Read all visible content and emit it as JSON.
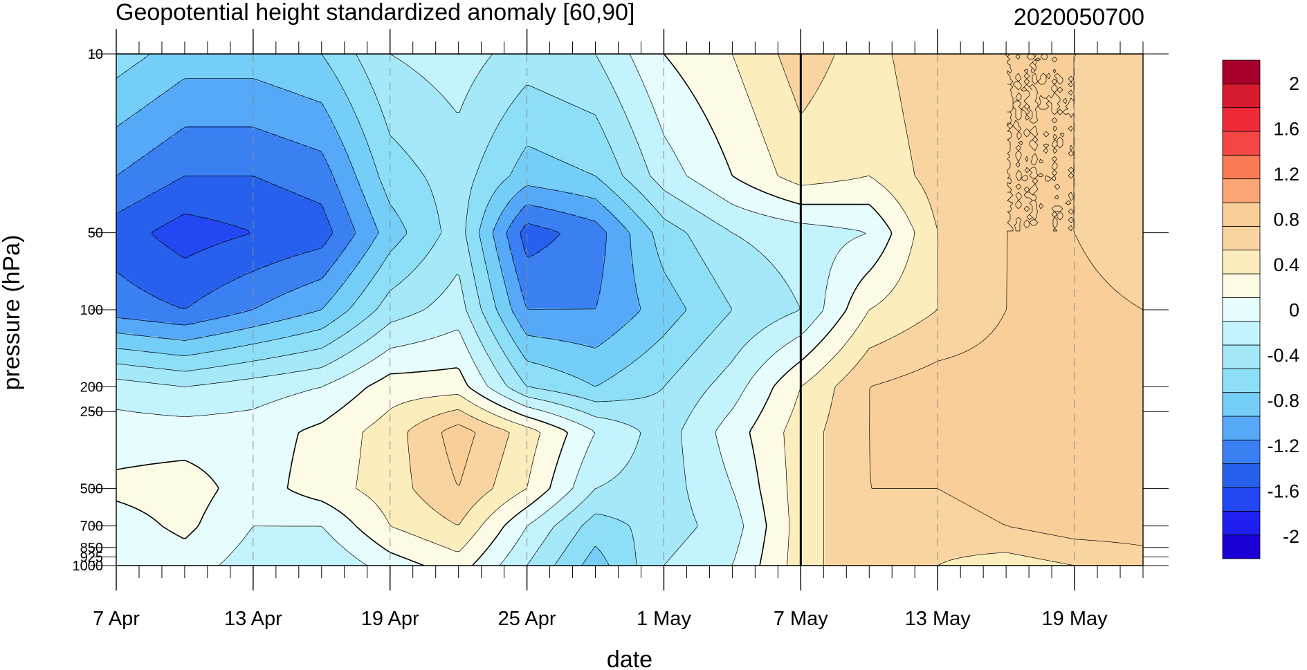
{
  "chart_data": {
    "type": "heatmap",
    "title": "Geopotential height standardized anomaly [60,90]",
    "subtitle": "2020050700",
    "xlabel": "date",
    "ylabel": "pressure (hPa)",
    "y_scale": "log",
    "y_reversed": true,
    "ylim": [
      1000,
      10
    ],
    "x_range": [
      "2020-04-07",
      "2020-05-22"
    ],
    "x_ticks": [
      {
        "date": "2020-04-07",
        "label": "7 Apr"
      },
      {
        "date": "2020-04-13",
        "label": "13 Apr"
      },
      {
        "date": "2020-04-19",
        "label": "19 Apr"
      },
      {
        "date": "2020-04-25",
        "label": "25 Apr"
      },
      {
        "date": "2020-05-01",
        "label": "1 May"
      },
      {
        "date": "2020-05-07",
        "label": "7 May"
      },
      {
        "date": "2020-05-13",
        "label": "13 May"
      },
      {
        "date": "2020-05-19",
        "label": "19 May"
      }
    ],
    "y_ticks": [
      {
        "value": 10,
        "label": "10"
      },
      {
        "value": 50,
        "label": "50"
      },
      {
        "value": 100,
        "label": "100"
      },
      {
        "value": 200,
        "label": "200"
      },
      {
        "value": 250,
        "label": "250"
      },
      {
        "value": 500,
        "label": "500"
      },
      {
        "value": 700,
        "label": "700"
      },
      {
        "value": 850,
        "label": "850"
      },
      {
        "value": 925,
        "label": "925"
      },
      {
        "value": 1000,
        "label": "1000"
      }
    ],
    "vertical_marker_date": "2020-05-07",
    "colorbar": {
      "levels": [
        -2.2,
        -2,
        -1.8,
        -1.6,
        -1.4,
        -1.2,
        -1,
        -0.8,
        -0.6,
        -0.4,
        -0.2,
        0,
        0.2,
        0.4,
        0.6,
        0.8,
        1,
        1.2,
        1.4,
        1.6,
        1.8,
        2,
        2.2
      ],
      "colors": [
        "#1b00d6",
        "#1f1ff0",
        "#2347f2",
        "#2860ee",
        "#3a80f2",
        "#56a8f8",
        "#74cef8",
        "#8ddff8",
        "#a5e8fa",
        "#c3f3fc",
        "#e6fcfd",
        "#fdfbe6",
        "#fcedbc",
        "#fad4a0",
        "#f9ce98",
        "#faa573",
        "#f97a55",
        "#f44745",
        "#ee2b37",
        "#d71c30",
        "#a8002c"
      ],
      "tick_labels": [
        {
          "value": 2,
          "label": "2"
        },
        {
          "value": 1.6,
          "label": "1.6"
        },
        {
          "value": 1.2,
          "label": "1.2"
        },
        {
          "value": 0.8,
          "label": "0.8"
        },
        {
          "value": 0.4,
          "label": "0.4"
        },
        {
          "value": 0,
          "label": "0"
        },
        {
          "value": -0.4,
          "label": "-0.4"
        },
        {
          "value": -0.8,
          "label": "-0.8"
        },
        {
          "value": -1.2,
          "label": "-1.2"
        },
        {
          "value": -1.6,
          "label": "-1.6"
        },
        {
          "value": -2,
          "label": "-2"
        }
      ]
    },
    "grid": {
      "x_dates": [
        "2020-04-07",
        "2020-04-10",
        "2020-04-13",
        "2020-04-16",
        "2020-04-19",
        "2020-04-22",
        "2020-04-25",
        "2020-04-28",
        "2020-05-01",
        "2020-05-04",
        "2020-05-07",
        "2020-05-10",
        "2020-05-13",
        "2020-05-16",
        "2020-05-19",
        "2020-05-22"
      ],
      "pressure_levels": [
        10,
        30,
        50,
        100,
        200,
        300,
        500,
        700,
        1000
      ],
      "values": [
        [
          -0.7,
          -0.9,
          -0.9,
          -0.8,
          -0.4,
          -0.3,
          -0.5,
          -0.4,
          0.0,
          0.2,
          0.5,
          0.3,
          0.6,
          0.6,
          0.6,
          0.6
        ],
        [
          -1.2,
          -1.4,
          -1.4,
          -1.3,
          -0.7,
          -0.5,
          -0.9,
          -0.8,
          -0.3,
          0.0,
          0.3,
          0.2,
          0.5,
          0.6,
          0.6,
          0.5
        ],
        [
          -1.5,
          -1.7,
          -1.6,
          -1.5,
          -0.9,
          -0.5,
          -1.5,
          -1.3,
          -0.7,
          -0.4,
          -0.3,
          -0.2,
          0.4,
          0.6,
          0.6,
          0.4
        ],
        [
          -1.3,
          -1.4,
          -1.2,
          -1.0,
          -0.5,
          -0.3,
          -1.2,
          -1.2,
          -0.9,
          -0.6,
          -0.4,
          0.2,
          0.4,
          0.6,
          0.7,
          0.6
        ],
        [
          -0.3,
          -0.4,
          -0.3,
          -0.2,
          0.1,
          0.1,
          -0.6,
          -0.8,
          -0.6,
          -0.3,
          0.2,
          0.6,
          0.7,
          0.7,
          0.7,
          0.7
        ],
        [
          -0.1,
          -0.1,
          -0.1,
          0.05,
          0.3,
          0.7,
          0.3,
          -0.2,
          -0.5,
          -0.1,
          0.3,
          0.6,
          0.7,
          0.7,
          0.7,
          0.7
        ],
        [
          0.05,
          0.1,
          -0.1,
          0.1,
          0.3,
          0.6,
          0.2,
          -0.4,
          -0.5,
          -0.2,
          0.3,
          0.6,
          0.6,
          0.7,
          0.7,
          0.7
        ],
        [
          -0.1,
          0.05,
          -0.2,
          -0.2,
          0.2,
          0.4,
          -0.2,
          -0.7,
          -0.5,
          -0.3,
          0.3,
          0.6,
          0.5,
          0.6,
          0.7,
          0.7
        ],
        [
          -0.2,
          -0.1,
          -0.3,
          -0.4,
          -0.1,
          0.1,
          -0.4,
          -0.9,
          -0.4,
          -0.2,
          0.3,
          0.6,
          0.4,
          0.3,
          0.4,
          0.5
        ]
      ]
    },
    "annotations": [
      {
        "type": "highlight",
        "label": "deepest cell near 50 hPa, mid-April"
      },
      {
        "type": "highlight",
        "label": "second minimum near 50-70 hPa, late April"
      }
    ]
  }
}
